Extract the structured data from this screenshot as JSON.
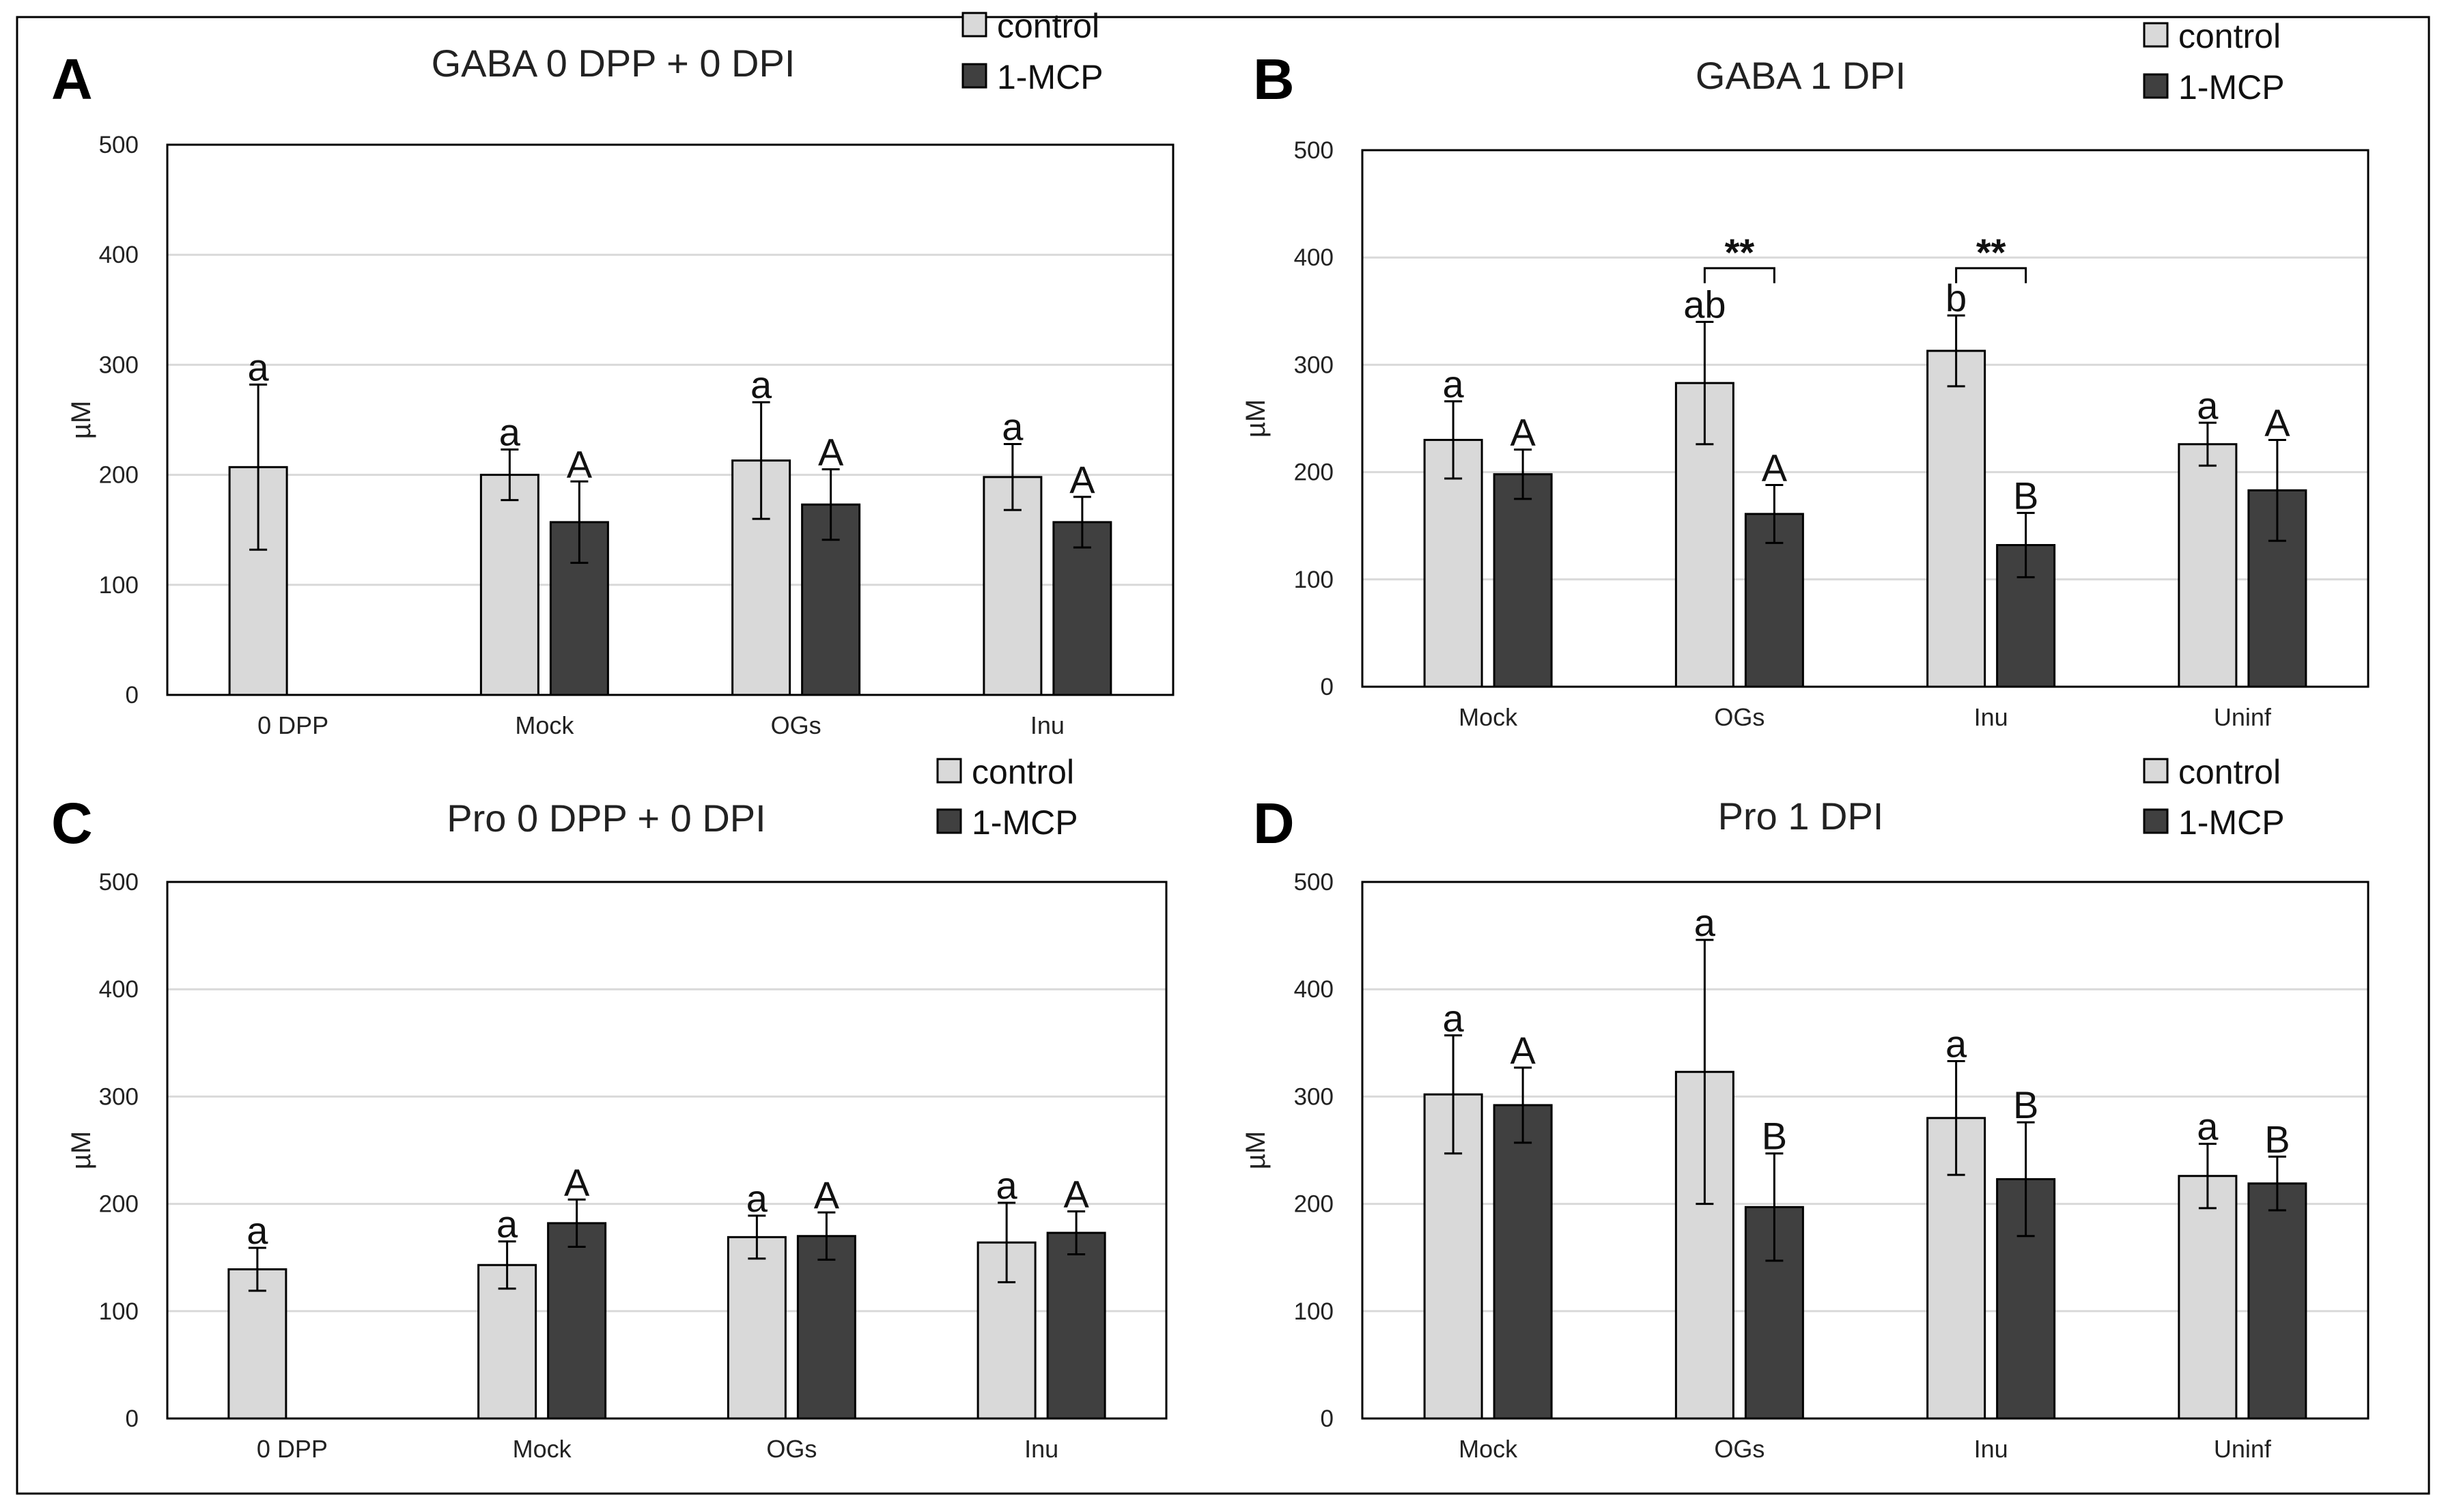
{
  "colors": {
    "control": "#d9d9d9",
    "mcp": "#404040",
    "edge": "#000000",
    "grid": "#d9d9d9",
    "frame": "#000000"
  },
  "legend": {
    "control": "control",
    "mcp": "1-MCP"
  },
  "chart_data": [
    {
      "id": "A",
      "type": "bar",
      "title": "GABA 0 DPP + 0 DPI",
      "ylabel": "µM",
      "ylim": [
        0,
        500
      ],
      "yticks": [
        0,
        100,
        200,
        300,
        400,
        500
      ],
      "categories": [
        "0 DPP",
        "Mock",
        "OGs",
        "Inu"
      ],
      "series": [
        {
          "name": "control",
          "values": [
            207,
            200,
            213,
            198
          ],
          "errors": [
            75,
            23,
            53,
            30
          ],
          "letters": [
            "a",
            "a",
            "a",
            "a"
          ]
        },
        {
          "name": "1-MCP",
          "values": [
            null,
            157,
            173,
            157
          ],
          "errors": [
            null,
            37,
            32,
            23
          ],
          "letters": [
            null,
            "A",
            "A",
            "A"
          ]
        }
      ],
      "annotations": []
    },
    {
      "id": "B",
      "type": "bar",
      "title": "GABA 1 DPI",
      "ylabel": "µM",
      "ylim": [
        0,
        500
      ],
      "yticks": [
        0,
        100,
        200,
        300,
        400,
        500
      ],
      "categories": [
        "Mock",
        "OGs",
        "Inu",
        "Uninf"
      ],
      "series": [
        {
          "name": "control",
          "values": [
            230,
            283,
            313,
            226
          ],
          "errors": [
            36,
            57,
            33,
            20
          ],
          "letters": [
            "a",
            "ab",
            "b",
            "a"
          ]
        },
        {
          "name": "1-MCP",
          "values": [
            198,
            161,
            132,
            183
          ],
          "errors": [
            23,
            27,
            30,
            47
          ],
          "letters": [
            "A",
            "A",
            "B",
            "A"
          ]
        }
      ],
      "annotations": [
        {
          "category": 1,
          "y": 390,
          "text": "**"
        },
        {
          "category": 2,
          "y": 390,
          "text": "**"
        }
      ]
    },
    {
      "id": "C",
      "type": "bar",
      "title": "Pro 0 DPP + 0 DPI",
      "ylabel": "µM",
      "ylim": [
        0,
        500
      ],
      "yticks": [
        0,
        100,
        200,
        300,
        400,
        500
      ],
      "categories": [
        "0 DPP",
        "Mock",
        "OGs",
        "Inu"
      ],
      "series": [
        {
          "name": "control",
          "values": [
            139,
            143,
            169,
            164
          ],
          "errors": [
            20,
            22,
            20,
            37
          ],
          "letters": [
            "a",
            "a",
            "a",
            "a"
          ]
        },
        {
          "name": "1-MCP",
          "values": [
            null,
            182,
            170,
            173
          ],
          "errors": [
            null,
            22,
            22,
            20
          ],
          "letters": [
            null,
            "A",
            "A",
            "A"
          ]
        }
      ],
      "annotations": []
    },
    {
      "id": "D",
      "type": "bar",
      "title": "Pro 1 DPI",
      "ylabel": "µM",
      "ylim": [
        0,
        500
      ],
      "yticks": [
        0,
        100,
        200,
        300,
        400,
        500
      ],
      "categories": [
        "Mock",
        "OGs",
        "Inu",
        "Uninf"
      ],
      "series": [
        {
          "name": "control",
          "values": [
            302,
            323,
            280,
            226
          ],
          "errors": [
            55,
            123,
            53,
            30
          ],
          "letters": [
            "a",
            "a",
            "a",
            "a"
          ]
        },
        {
          "name": "1-MCP",
          "values": [
            292,
            197,
            223,
            219
          ],
          "errors": [
            35,
            50,
            53,
            25
          ],
          "letters": [
            "A",
            "B",
            "B",
            "B"
          ]
        }
      ],
      "annotations": []
    }
  ]
}
